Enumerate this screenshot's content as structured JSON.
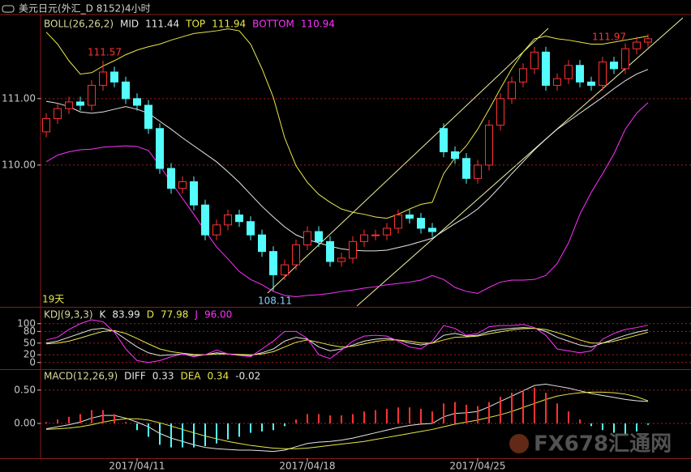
{
  "title": "美元日元(外汇_D 8152)4小时",
  "watermark": "FX678汇通网",
  "annotations": [
    "111.57",
    "111.97",
    "108.11",
    "19天"
  ],
  "chart_data": [
    {
      "type": "candlestick",
      "title": "BOLL(26,26,2)",
      "open": [
        110.5,
        110.7,
        110.85,
        110.95,
        110.9,
        111.2,
        111.4,
        111.25,
        111.0,
        110.9,
        110.55,
        109.95,
        109.65,
        109.75,
        109.4,
        108.95,
        109.1,
        109.25,
        109.15,
        108.95,
        108.7,
        108.35,
        108.5,
        108.8,
        109.0,
        108.85,
        108.55,
        108.6,
        108.85,
        108.95,
        108.95,
        109.05,
        109.25,
        109.2,
        109.05,
        110.55,
        110.2,
        110.1,
        109.8,
        110.0,
        110.6,
        111.0,
        111.25,
        111.45,
        111.7,
        111.2,
        111.3,
        111.5,
        111.25,
        111.2,
        111.55,
        111.45,
        111.75,
        111.85
      ],
      "high": [
        110.78,
        110.93,
        111.03,
        111.03,
        111.28,
        111.57,
        111.48,
        111.33,
        111.08,
        110.98,
        110.63,
        110.03,
        109.83,
        109.83,
        109.48,
        109.18,
        109.33,
        109.33,
        109.23,
        109.03,
        108.78,
        108.58,
        108.88,
        109.08,
        109.08,
        108.93,
        108.68,
        108.93,
        109.03,
        109.03,
        109.13,
        109.33,
        109.33,
        109.28,
        109.13,
        110.63,
        110.28,
        110.18,
        110.08,
        110.68,
        111.08,
        111.33,
        111.53,
        111.78,
        111.78,
        111.38,
        111.58,
        111.58,
        111.33,
        111.63,
        111.63,
        111.83,
        111.93,
        111.97
      ],
      "low": [
        110.42,
        110.62,
        110.77,
        110.82,
        110.82,
        111.12,
        111.17,
        110.92,
        110.82,
        110.47,
        109.87,
        109.57,
        109.57,
        109.32,
        108.87,
        108.87,
        109.02,
        109.07,
        108.87,
        108.62,
        108.11,
        108.27,
        108.42,
        108.72,
        108.77,
        108.47,
        108.47,
        108.52,
        108.77,
        108.87,
        108.87,
        108.97,
        109.12,
        108.97,
        108.92,
        110.12,
        110.02,
        109.72,
        109.72,
        109.92,
        110.52,
        110.92,
        111.17,
        111.37,
        111.12,
        111.12,
        111.22,
        111.17,
        111.12,
        111.12,
        111.37,
        111.37,
        111.67,
        111.77
      ],
      "close": [
        110.7,
        110.85,
        110.95,
        110.9,
        111.2,
        111.4,
        111.25,
        111.0,
        110.9,
        110.55,
        109.95,
        109.65,
        109.75,
        109.4,
        108.95,
        109.1,
        109.25,
        109.15,
        108.95,
        108.7,
        108.35,
        108.5,
        108.8,
        109.0,
        108.85,
        108.55,
        108.6,
        108.85,
        108.95,
        108.95,
        109.05,
        109.25,
        109.2,
        109.05,
        109.0,
        110.2,
        110.1,
        109.8,
        110.0,
        110.6,
        111.0,
        111.25,
        111.45,
        111.7,
        111.2,
        111.3,
        111.5,
        111.25,
        111.2,
        111.55,
        111.45,
        111.75,
        111.85,
        111.9
      ],
      "up_color": "#ff3232",
      "down_color": "#54fcfc",
      "series": [
        {
          "name": "MID",
          "color": "#e6e6e6",
          "legend_value": "111.44",
          "values": [
            110.96,
            110.93,
            110.88,
            110.8,
            110.78,
            110.8,
            110.84,
            110.88,
            110.84,
            110.78,
            110.66,
            110.54,
            110.41,
            110.29,
            110.17,
            110.05,
            109.9,
            109.74,
            109.56,
            109.38,
            109.22,
            109.07,
            108.95,
            108.88,
            108.83,
            108.78,
            108.74,
            108.72,
            108.71,
            108.71,
            108.72,
            108.76,
            108.8,
            108.85,
            108.9,
            109.01,
            109.12,
            109.22,
            109.34,
            109.5,
            109.68,
            109.87,
            110.05,
            110.23,
            110.39,
            110.54,
            110.66,
            110.78,
            110.9,
            111.02,
            111.15,
            111.27,
            111.37,
            111.44
          ]
        },
        {
          "name": "TOP",
          "color": "#e8e84a",
          "legend_value": "111.94",
          "values": [
            112.0,
            111.82,
            111.57,
            111.37,
            111.39,
            111.49,
            111.57,
            111.66,
            111.73,
            111.78,
            111.82,
            111.88,
            111.93,
            111.98,
            112.0,
            112.02,
            112.05,
            112.02,
            111.82,
            111.45,
            111.02,
            110.41,
            109.99,
            109.74,
            109.56,
            109.44,
            109.34,
            109.29,
            109.26,
            109.22,
            109.2,
            109.26,
            109.34,
            109.41,
            109.44,
            109.87,
            110.11,
            110.29,
            110.54,
            110.84,
            111.15,
            111.45,
            111.7,
            111.9,
            111.94,
            111.9,
            111.88,
            111.85,
            111.82,
            111.82,
            111.85,
            111.88,
            111.91,
            111.94
          ]
        },
        {
          "name": "BOTTOM",
          "color": "#ff32ff",
          "legend_value": "110.94",
          "values": [
            110.05,
            110.15,
            110.2,
            110.23,
            110.24,
            110.27,
            110.28,
            110.29,
            110.28,
            110.22,
            109.99,
            109.74,
            109.5,
            109.26,
            109.01,
            108.77,
            108.59,
            108.4,
            108.28,
            108.2,
            108.1,
            108.04,
            108.02,
            108.04,
            108.05,
            108.07,
            108.1,
            108.12,
            108.15,
            108.17,
            108.2,
            108.22,
            108.24,
            108.27,
            108.34,
            108.28,
            108.16,
            108.1,
            108.07,
            108.16,
            108.24,
            108.27,
            108.27,
            108.28,
            108.34,
            108.52,
            108.83,
            109.26,
            109.59,
            109.87,
            110.17,
            110.54,
            110.78,
            110.94
          ]
        }
      ],
      "ylim": [
        107.88,
        112.24
      ],
      "yticks": [
        {
          "value": 110,
          "label": "110.00"
        },
        {
          "value": 111,
          "label": "111.00"
        }
      ],
      "grid": true
    },
    {
      "type": "line",
      "title": "KDJ(9,3,3)",
      "series": [
        {
          "name": "K",
          "color": "#e6e6e6",
          "legend_value": "83.99",
          "values": [
            50,
            55,
            65,
            75,
            85,
            88,
            80,
            60,
            40,
            25,
            18,
            20,
            22,
            18,
            20,
            25,
            22,
            20,
            18,
            25,
            35,
            55,
            65,
            60,
            40,
            30,
            35,
            45,
            55,
            60,
            62,
            58,
            50,
            45,
            50,
            70,
            75,
            68,
            70,
            80,
            85,
            88,
            90,
            88,
            80,
            65,
            55,
            45,
            40,
            50,
            60,
            70,
            78,
            83.99
          ]
        },
        {
          "name": "D",
          "color": "#e8e84a",
          "legend_value": "77.98",
          "values": [
            48,
            50,
            55,
            63,
            72,
            80,
            82,
            75,
            62,
            48,
            35,
            28,
            24,
            21,
            20,
            22,
            22,
            21,
            20,
            22,
            28,
            40,
            52,
            58,
            52,
            45,
            40,
            42,
            48,
            54,
            58,
            58,
            55,
            50,
            50,
            58,
            65,
            66,
            68,
            74,
            79,
            84,
            87,
            88,
            85,
            77,
            68,
            58,
            50,
            50,
            55,
            62,
            70,
            77.98
          ]
        },
        {
          "name": "J",
          "color": "#ff32ff",
          "legend_value": "96.00",
          "values": [
            58,
            65,
            85,
            100,
            110,
            105,
            78,
            35,
            5,
            0,
            5,
            15,
            22,
            15,
            20,
            32,
            22,
            18,
            15,
            35,
            55,
            80,
            80,
            62,
            20,
            10,
            32,
            55,
            68,
            70,
            68,
            55,
            40,
            35,
            55,
            95,
            88,
            70,
            75,
            92,
            95,
            95,
            98,
            90,
            70,
            35,
            30,
            25,
            30,
            60,
            75,
            85,
            90,
            96
          ]
        }
      ],
      "ylim": [
        -15,
        137
      ],
      "yticks": [
        0,
        20,
        50,
        80,
        100
      ],
      "grid": true
    },
    {
      "type": "combo",
      "title": "MACD(12,26,9)",
      "categories": [
        null,
        null,
        null,
        null,
        null,
        null,
        null,
        null,
        "2017/04/11",
        null,
        null,
        null,
        null,
        null,
        null,
        null,
        null,
        null,
        null,
        null,
        null,
        null,
        null,
        "2017/04/18",
        null,
        null,
        null,
        null,
        null,
        null,
        null,
        null,
        null,
        null,
        null,
        null,
        null,
        null,
        "2017/04/25",
        null,
        null,
        null,
        null,
        null,
        null,
        null,
        null,
        null,
        null,
        null,
        null,
        null,
        null,
        null
      ],
      "up_color": "#ff3232",
      "down_color": "#54fcfc",
      "series": [
        {
          "name": "DIFF",
          "type": "line",
          "color": "#e6e6e6",
          "legend_value": "0.33",
          "values": [
            -0.08,
            -0.05,
            -0.02,
            0.02,
            0.08,
            0.12,
            0.12,
            0.08,
            0.02,
            -0.05,
            -0.15,
            -0.22,
            -0.27,
            -0.32,
            -0.36,
            -0.38,
            -0.39,
            -0.4,
            -0.4,
            -0.41,
            -0.42,
            -0.4,
            -0.35,
            -0.3,
            -0.28,
            -0.27,
            -0.25,
            -0.22,
            -0.18,
            -0.14,
            -0.1,
            -0.06,
            -0.03,
            -0.01,
            0.0,
            0.1,
            0.15,
            0.16,
            0.18,
            0.25,
            0.33,
            0.41,
            0.49,
            0.57,
            0.59,
            0.56,
            0.53,
            0.49,
            0.45,
            0.42,
            0.39,
            0.36,
            0.34,
            0.33
          ]
        },
        {
          "name": "DEA",
          "type": "line",
          "color": "#e8e84a",
          "legend_value": "0.34",
          "values": [
            -0.09,
            -0.08,
            -0.07,
            -0.05,
            -0.02,
            0.02,
            0.05,
            0.07,
            0.07,
            0.05,
            0.01,
            -0.04,
            -0.09,
            -0.14,
            -0.19,
            -0.23,
            -0.27,
            -0.3,
            -0.33,
            -0.35,
            -0.37,
            -0.38,
            -0.38,
            -0.37,
            -0.35,
            -0.33,
            -0.31,
            -0.29,
            -0.27,
            -0.24,
            -0.21,
            -0.18,
            -0.15,
            -0.12,
            -0.09,
            -0.05,
            -0.01,
            0.02,
            0.05,
            0.09,
            0.13,
            0.18,
            0.24,
            0.3,
            0.36,
            0.41,
            0.44,
            0.46,
            0.47,
            0.47,
            0.46,
            0.44,
            0.4,
            0.34
          ]
        },
        {
          "type": "bar",
          "color": "#e6e6e6",
          "legend_value": "-0.02",
          "values": [
            0.02,
            0.06,
            0.1,
            0.14,
            0.2,
            0.2,
            0.14,
            0.02,
            -0.1,
            -0.2,
            -0.32,
            -0.36,
            -0.36,
            -0.36,
            -0.34,
            -0.3,
            -0.24,
            -0.2,
            -0.14,
            -0.12,
            -0.1,
            -0.04,
            0.06,
            0.14,
            0.14,
            0.12,
            0.12,
            0.14,
            0.18,
            0.2,
            0.22,
            0.24,
            0.24,
            0.22,
            0.18,
            0.3,
            0.32,
            0.28,
            0.26,
            0.32,
            0.4,
            0.46,
            0.5,
            0.54,
            0.46,
            0.3,
            0.18,
            0.06,
            -0.04,
            -0.1,
            -0.14,
            -0.16,
            -0.12,
            -0.02
          ]
        }
      ],
      "ylim": [
        -0.51,
        0.79
      ],
      "yticks": [
        {
          "value": 0,
          "label": "0.00"
        },
        {
          "value": 0.5,
          "label": "0.50"
        }
      ],
      "grid": true
    }
  ]
}
